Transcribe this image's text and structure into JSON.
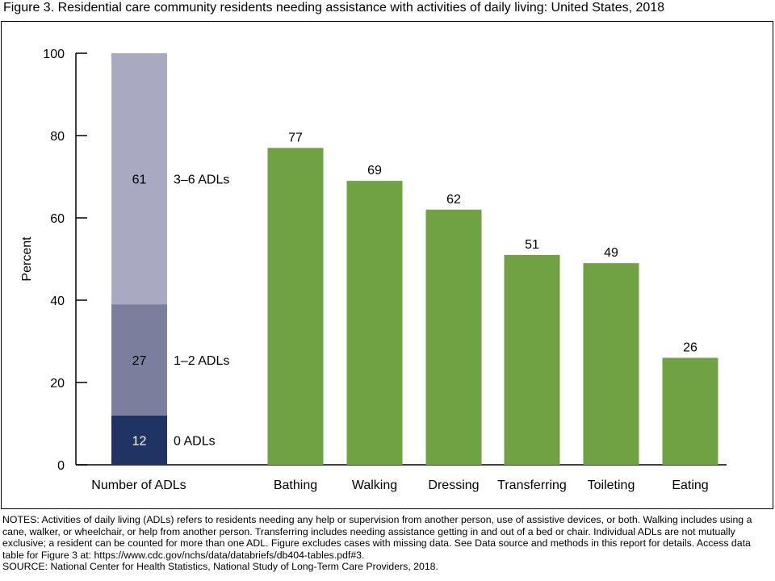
{
  "figure": {
    "title": "Figure 3. Residential care community residents needing assistance with activities of daily living: United States, 2018"
  },
  "chart_data": {
    "type": "bar",
    "ylabel": "Percent",
    "ylim": [
      0,
      100
    ],
    "yticks": [
      0,
      20,
      40,
      60,
      80,
      100
    ],
    "grid": false,
    "stacked_bar": {
      "category": "Number of ADLs",
      "segments": [
        {
          "name": "0 ADLs",
          "value": 12,
          "color": "#1f3462",
          "label_color": "#ffffff"
        },
        {
          "name": "1–2 ADLs",
          "value": 27,
          "color": "#7b7f9e",
          "label_color": "#000000"
        },
        {
          "name": "3–6 ADLs",
          "value": 61,
          "color": "#a9a9c2",
          "label_color": "#000000"
        }
      ]
    },
    "categories": [
      "Bathing",
      "Walking",
      "Dressing",
      "Transferring",
      "Toileting",
      "Eating"
    ],
    "values": [
      77,
      69,
      62,
      51,
      49,
      26
    ],
    "bar_color": "#70a142"
  },
  "notes": {
    "notes_text": "NOTES: Activities of daily living (ADLs) refers to residents needing any help or supervision from another person, use of assistive devices, or both. Walking includes using a cane, walker, or wheelchair, or help from another person. Transferring includes needing assistance getting in and out of a bed or chair. Individual ADLs are not mutually exclusive; a resident can be counted for more than one ADL. Figure excludes cases with missing data. See Data source and methods in this report for details. Access data table for Figure 3 at: https://www.cdc.gov/nchs/data/databriefs/db404-tables.pdf#3.",
    "source_text": "SOURCE: National Center for Health Statistics, National Study of Long-Term Care Providers, 2018."
  }
}
